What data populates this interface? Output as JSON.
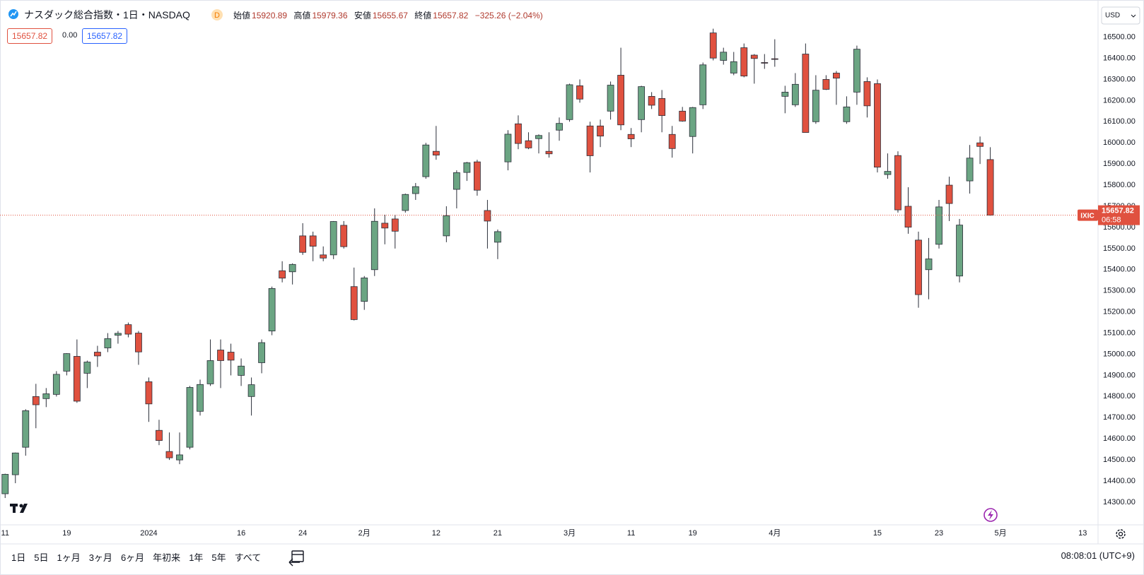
{
  "header": {
    "symbol_title": "ナスダック総合指数・1日・NASDAQ",
    "badge": "D",
    "ohlc": [
      {
        "label": "始値",
        "value": "15920.89"
      },
      {
        "label": "高値",
        "value": "15979.36"
      },
      {
        "label": "安値",
        "value": "15655.67"
      },
      {
        "label": "終値",
        "value": "15657.82"
      }
    ],
    "change": "−325.26 (−2.04%)"
  },
  "inputs": [
    "15657.82",
    "0.00",
    "15657.82"
  ],
  "currency": "USD",
  "chart_data": {
    "type": "candlestick",
    "open": [
      14340,
      14430,
      14560,
      14800,
      14790,
      14810,
      14920,
      14990,
      14910,
      15010,
      15030,
      15090,
      15140,
      15100,
      14870,
      14640,
      14540,
      14500,
      14560,
      14730,
      14860,
      15020,
      15010,
      14900,
      14800,
      14960,
      15110,
      15395,
      15390,
      15560,
      15560,
      15470,
      15470,
      15610,
      15320,
      15250,
      15400,
      15620,
      15640,
      15680,
      15760,
      15840,
      15960,
      15560,
      15780,
      15860,
      15910,
      15680,
      15530,
      15910,
      16090,
      16010,
      16020,
      15960,
      16060,
      16110,
      16270,
      16080,
      16080,
      16150,
      16320,
      16040,
      16110,
      16220,
      16210,
      16040,
      16150,
      16030,
      16180,
      16520,
      16390,
      16330,
      16450,
      16415,
      16380,
      16398,
      16220,
      16180,
      16420,
      16100,
      16300,
      16330,
      16100,
      16240,
      16290,
      16280,
      15850,
      15940,
      15700,
      15540,
      15400,
      15520,
      15800,
      15370,
      15820,
      16000,
      15920.89
    ],
    "high": [
      14435,
      14535,
      14740,
      14860,
      14840,
      14920,
      15005,
      15070,
      14970,
      15040,
      15100,
      15110,
      15150,
      15110,
      14890,
      14690,
      14630,
      14630,
      14850,
      14880,
      15070,
      15070,
      15050,
      14980,
      14890,
      15070,
      15320,
      15440,
      15430,
      15620,
      15580,
      15510,
      15630,
      15630,
      15410,
      15370,
      15690,
      15660,
      15660,
      15760,
      15810,
      16000,
      16080,
      15700,
      15870,
      15910,
      15920,
      15730,
      15590,
      16060,
      16130,
      16050,
      16040,
      16050,
      16120,
      16280,
      16300,
      16100,
      16110,
      16290,
      16450,
      16070,
      16270,
      16240,
      16250,
      16080,
      16170,
      16170,
      16380,
      16540,
      16450,
      16430,
      16470,
      16420,
      16420,
      16490,
      16270,
      16330,
      16470,
      16320,
      16320,
      16340,
      16220,
      16460,
      16310,
      16300,
      15950,
      15960,
      15790,
      15580,
      15550,
      15730,
      15840,
      15640,
      15990,
      16030,
      15979.36
    ],
    "low": [
      14320,
      14390,
      14520,
      14650,
      14750,
      14800,
      14900,
      14770,
      14840,
      14940,
      15010,
      15050,
      15080,
      14950,
      14680,
      14570,
      14500,
      14480,
      14550,
      14710,
      14850,
      14840,
      14900,
      14850,
      14710,
      14910,
      15090,
      15340,
      15330,
      15470,
      15440,
      15440,
      15450,
      15500,
      15160,
      15210,
      15370,
      15520,
      15500,
      15670,
      15730,
      15830,
      15920,
      15530,
      15690,
      15820,
      15750,
      15500,
      15450,
      15870,
      15970,
      15970,
      15950,
      15930,
      16010,
      16100,
      16190,
      15860,
      15980,
      16110,
      16060,
      15980,
      16050,
      16160,
      16050,
      15930,
      16100,
      15950,
      16160,
      16390,
      16370,
      16320,
      16310,
      16280,
      16350,
      16360,
      16140,
      16170,
      16049,
      16090,
      16250,
      16180,
      16090,
      16180,
      16120,
      15860,
      15830,
      15670,
      15570,
      15220,
      15260,
      15500,
      15630,
      15340,
      15760,
      15900,
      15655.67
    ],
    "close": [
      14432,
      14533,
      14733,
      14761,
      14813,
      14905,
      15003,
      14778,
      14963,
      14992,
      15074,
      15099,
      15095,
      15011,
      14765,
      14592,
      14510,
      14524,
      14843,
      14857,
      14970,
      14970,
      14972,
      14944,
      14856,
      15055,
      15311,
      15360,
      15425,
      15482,
      15511,
      15455,
      15628,
      15509,
      15164,
      15361,
      15629,
      15597,
      15582,
      15756,
      15793,
      15990,
      15942,
      15655,
      15859,
      15906,
      15776,
      15630,
      15580,
      16041,
      15997,
      15976,
      16035,
      15948,
      16092,
      16275,
      16207,
      15939,
      16032,
      16273,
      16085,
      16019,
      16266,
      16178,
      16129,
      15973,
      16103,
      16167,
      16369,
      16401,
      16429,
      16384,
      16316,
      16399,
      16379,
      16397,
      16240,
      16277,
      16049,
      16249,
      16253,
      16306,
      16170,
      16443,
      16175,
      15885,
      15865,
      15683,
      15601,
      15282,
      15451,
      15697,
      15713,
      15611,
      15928,
      15983,
      15657.82
    ],
    "up_color": "#6ba583",
    "down_color": "#e0513f",
    "border_color": "#2a2e39",
    "last_price_color": "#e0513f",
    "grid": false,
    "ylim": [
      14203,
      16649
    ],
    "yticks": [
      {
        "value": 14300,
        "label": "14300.00"
      },
      {
        "value": 14400,
        "label": "14400.00"
      },
      {
        "value": 14500,
        "label": "14500.00"
      },
      {
        "value": 14600,
        "label": "14600.00"
      },
      {
        "value": 14700,
        "label": "14700.00"
      },
      {
        "value": 14800,
        "label": "14800.00"
      },
      {
        "value": 14900,
        "label": "14900.00"
      },
      {
        "value": 15000,
        "label": "15000.00"
      },
      {
        "value": 15100,
        "label": "15100.00"
      },
      {
        "value": 15200,
        "label": "15200.00"
      },
      {
        "value": 15300,
        "label": "15300.00"
      },
      {
        "value": 15400,
        "label": "15400.00"
      },
      {
        "value": 15500,
        "label": "15500.00"
      },
      {
        "value": 15600,
        "label": "15600.00"
      },
      {
        "value": 15700,
        "label": "15700.00"
      },
      {
        "value": 15800,
        "label": "15800.00"
      },
      {
        "value": 15900,
        "label": "15900.00"
      },
      {
        "value": 16000,
        "label": "16000.00"
      },
      {
        "value": 16100,
        "label": "16100.00"
      },
      {
        "value": 16200,
        "label": "16200.00"
      },
      {
        "value": 16300,
        "label": "16300.00"
      },
      {
        "value": 16400,
        "label": "16400.00"
      },
      {
        "value": 16500,
        "label": "16500.00"
      }
    ],
    "xlim": [
      -0.5,
      106.5
    ],
    "xticks": [
      {
        "value": 0,
        "label": "11"
      },
      {
        "value": 6,
        "label": "19"
      },
      {
        "value": 14,
        "label": "2024"
      },
      {
        "value": 23,
        "label": "16"
      },
      {
        "value": 29,
        "label": "24"
      },
      {
        "value": 35,
        "label": "2月"
      },
      {
        "value": 42,
        "label": "12"
      },
      {
        "value": 48,
        "label": "21"
      },
      {
        "value": 55,
        "label": "3月"
      },
      {
        "value": 61,
        "label": "11"
      },
      {
        "value": 67,
        "label": "19"
      },
      {
        "value": 75,
        "label": "4月"
      },
      {
        "value": 85,
        "label": "15"
      },
      {
        "value": 91,
        "label": "23"
      },
      {
        "value": 97,
        "label": "5月"
      },
      {
        "value": 105,
        "label": "13"
      }
    ],
    "last_price": {
      "symbol": "IXIC",
      "price": "15657.82",
      "countdown": "06:58"
    }
  },
  "toolbar": {
    "ranges": [
      "1日",
      "5日",
      "1ヶ月",
      "3ヶ月",
      "6ヶ月",
      "年初来",
      "1年",
      "5年",
      "すべて"
    ],
    "clock": "08:08:01 (UTC+9)"
  }
}
